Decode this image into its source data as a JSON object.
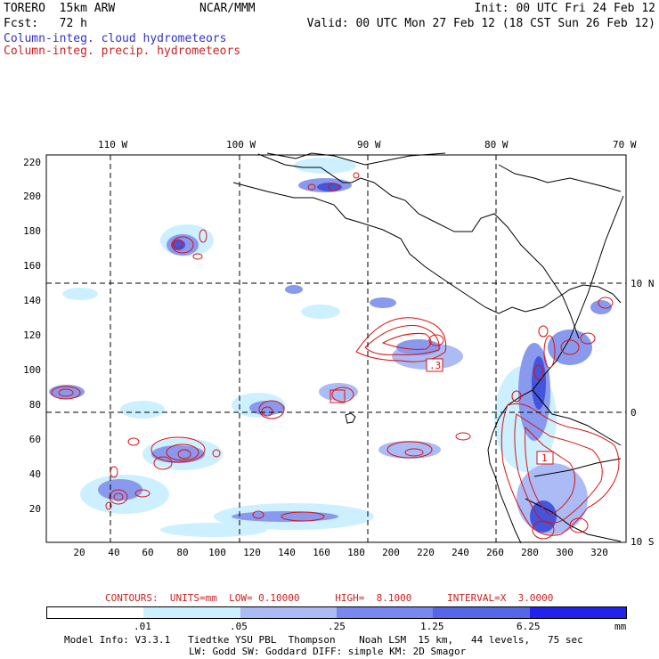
{
  "header": {
    "model": "TORERO  15km ARW",
    "org": "NCAR/MMM",
    "init": "Init: 00 UTC Fri 24 Feb 12",
    "fcst": "Fcst:   72 h",
    "valid": "Valid: 00 UTC Mon 27 Feb 12 (18 CST Sun 26 Feb 12)",
    "field1": "Column-integ. cloud hydrometeors",
    "field2": "Column-integ. precip. hydrometeors"
  },
  "map": {
    "top_lon_labels": [
      "110 W",
      "100 W",
      "90 W",
      "80 W",
      "70 W"
    ],
    "right_lat_labels": [
      "10 N",
      "0",
      "10 S"
    ],
    "left_ticks": [
      "220",
      "200",
      "180",
      "160",
      "140",
      "120",
      "100",
      "80",
      "60",
      "40",
      "20"
    ],
    "bottom_ticks": [
      "20",
      "40",
      "60",
      "80",
      "100",
      "120",
      "140",
      "160",
      "180",
      "200",
      "220",
      "240",
      "260",
      "280",
      "300",
      "320"
    ],
    "contour_labels": [
      ".3",
      "1"
    ],
    "colors": {
      "land": "#000000",
      "precip": "#dd1111",
      "light": "#ccf0ff",
      "mid": "#8899ee",
      "dark": "#4455dd"
    }
  },
  "contour_info": "CONTOURS:  UNITS=mm  LOW= 0.10000      HIGH=  8.1000      INTERVAL=X  3.0000",
  "colorbar": {
    "labels": [
      ".01",
      ".05",
      ".25",
      "1.25",
      "6.25"
    ],
    "unit": "mm",
    "colors": [
      "#ffffff",
      "#ccf0ff",
      "#aabbf5",
      "#7788ee",
      "#5566e6",
      "#2222ee"
    ]
  },
  "footer": {
    "line1": "Model Info: V3.3.1   Tiedtke YSU PBL  Thompson    Noah LSM  15 km,   44 levels,   75 sec",
    "line2": "LW: Godd SW: Goddard DIFF: simple KM: 2D Smagor"
  }
}
